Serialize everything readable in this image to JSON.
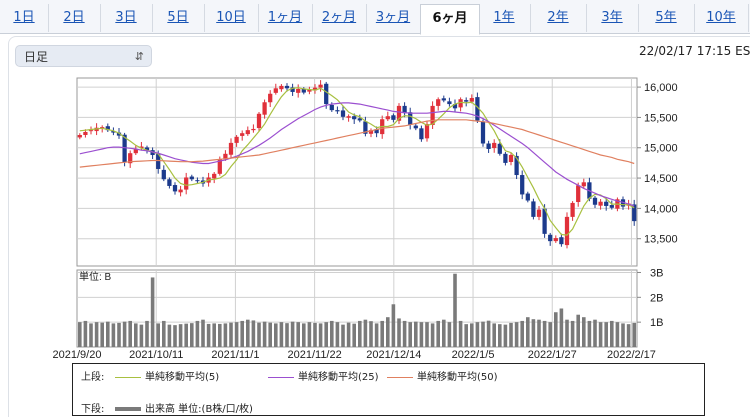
{
  "tabs": [
    {
      "label": "1日",
      "active": false
    },
    {
      "label": "2日",
      "active": false
    },
    {
      "label": "3日",
      "active": false
    },
    {
      "label": "5日",
      "active": false
    },
    {
      "label": "10日",
      "active": false
    },
    {
      "label": "1ヶ月",
      "active": false
    },
    {
      "label": "2ヶ月",
      "active": false
    },
    {
      "label": "3ヶ月",
      "active": false
    },
    {
      "label": "6ヶ月",
      "active": true
    },
    {
      "label": "1年",
      "active": false
    },
    {
      "label": "2年",
      "active": false
    },
    {
      "label": "3年",
      "active": false
    },
    {
      "label": "5年",
      "active": false
    },
    {
      "label": "10年",
      "active": false
    }
  ],
  "period_select": {
    "value": "日足"
  },
  "datetime": "22/02/17 17:15 ES",
  "legend": {
    "upper_label": "上段:",
    "lower_label": "下段:",
    "ma5": "単純移動平均(5)",
    "ma25": "単純移動平均(25)",
    "ma50": "単純移動平均(50)",
    "volume": "出来高 単位:(B株/口/枚)"
  },
  "colors": {
    "up": "#e0303a",
    "down": "#1c3a8c",
    "ma5": "#a8c040",
    "ma25": "#9b4fd0",
    "ma50": "#e08060",
    "volume": "#7a7a7a"
  },
  "chart_data": [
    {
      "type": "candlestick",
      "x_labels": [
        "2021/9/20",
        "2021/10/11",
        "2021/11/1",
        "2021/11/22",
        "2021/12/14",
        "2022/1/5",
        "2022/1/27",
        "2022/2/17"
      ],
      "y_ticks": [
        13500,
        14000,
        14500,
        15000,
        15500,
        16000
      ],
      "ylim": [
        13050,
        16150
      ],
      "close": [
        15210,
        15260,
        15290,
        15330,
        15340,
        15290,
        15250,
        15200,
        14760,
        14910,
        14980,
        15020,
        14960,
        14880,
        14650,
        14480,
        14370,
        14280,
        14310,
        14510,
        14480,
        14460,
        14410,
        14510,
        14570,
        14810,
        14900,
        15080,
        15180,
        15240,
        15290,
        15310,
        15560,
        15750,
        15890,
        15980,
        16020,
        15980,
        15920,
        15970,
        15910,
        15960,
        15990,
        16040,
        15720,
        15620,
        15600,
        15510,
        15520,
        15470,
        15450,
        15230,
        15290,
        15240,
        15470,
        15520,
        15460,
        15690,
        15570,
        15380,
        15320,
        15140,
        15390,
        15690,
        15800,
        15780,
        15720,
        15650,
        15800,
        15760,
        15820,
        15450,
        15070,
        14980,
        15080,
        14900,
        14750,
        14880,
        14550,
        14230,
        14130,
        13860,
        13980,
        13580,
        13460,
        13510,
        13410,
        13860,
        14090,
        14380,
        14430,
        14160,
        14060,
        14110,
        14040,
        14010,
        14150,
        14030,
        14080,
        13790
      ],
      "series": [
        {
          "name": "単純移動平均(5)",
          "values": [
            15280,
            15290,
            15300,
            15310,
            15320,
            15300,
            15280,
            15240,
            15170,
            15110,
            15040,
            14990,
            14960,
            14930,
            14900,
            14770,
            14640,
            14500,
            14410,
            14380,
            14390,
            14410,
            14430,
            14470,
            14480,
            14500,
            14560,
            14690,
            14800,
            14950,
            15050,
            15160,
            15270,
            15390,
            15550,
            15700,
            15840,
            15940,
            15980,
            15990,
            15970,
            15960,
            15950,
            15980,
            15920,
            15860,
            15790,
            15690,
            15590,
            15540,
            15510,
            15440,
            15390,
            15330,
            15350,
            15350,
            15380,
            15480,
            15530,
            15520,
            15480,
            15420,
            15370,
            15390,
            15470,
            15560,
            15660,
            15720,
            15750,
            15740,
            15750,
            15670,
            15570,
            15420,
            15280,
            15100,
            14950,
            14920,
            14830,
            14680,
            14510,
            14340,
            14150,
            14000,
            13800,
            13680,
            13570,
            13560,
            13660,
            13850,
            14040,
            14170,
            14230,
            14220,
            14160,
            14070,
            14070,
            14060,
            14060,
            14010
          ]
        },
        {
          "name": "単純移動平均(25)",
          "values": [
            14900,
            14920,
            14940,
            14960,
            14980,
            15000,
            15010,
            15010,
            15000,
            14990,
            14980,
            14960,
            14950,
            14930,
            14910,
            14880,
            14850,
            14820,
            14800,
            14780,
            14760,
            14750,
            14740,
            14740,
            14760,
            14780,
            14800,
            14830,
            14860,
            14900,
            14940,
            14990,
            15040,
            15100,
            15160,
            15230,
            15300,
            15360,
            15420,
            15480,
            15530,
            15580,
            15630,
            15670,
            15700,
            15720,
            15730,
            15740,
            15740,
            15730,
            15720,
            15700,
            15680,
            15660,
            15640,
            15620,
            15600,
            15590,
            15580,
            15570,
            15570,
            15570,
            15570,
            15580,
            15590,
            15600,
            15600,
            15590,
            15580,
            15570,
            15550,
            15520,
            15480,
            15430,
            15370,
            15310,
            15250,
            15190,
            15130,
            15070,
            15000,
            14920,
            14840,
            14760,
            14680,
            14600,
            14540,
            14480,
            14430,
            14380,
            14330,
            14290,
            14250,
            14210,
            14180,
            14150,
            14120,
            14100,
            14070,
            14040
          ]
        },
        {
          "name": "単純移動平均(50)",
          "values": [
            14680,
            14690,
            14700,
            14710,
            14720,
            14730,
            14740,
            14750,
            14760,
            14770,
            14775,
            14780,
            14785,
            14790,
            14790,
            14785,
            14780,
            14775,
            14770,
            14770,
            14770,
            14775,
            14780,
            14790,
            14800,
            14810,
            14820,
            14830,
            14840,
            14850,
            14860,
            14870,
            14880,
            14900,
            14920,
            14940,
            14960,
            14980,
            15000,
            15020,
            15040,
            15060,
            15080,
            15100,
            15120,
            15140,
            15160,
            15180,
            15200,
            15220,
            15240,
            15260,
            15280,
            15300,
            15320,
            15330,
            15340,
            15350,
            15360,
            15380,
            15400,
            15420,
            15440,
            15450,
            15460,
            15460,
            15460,
            15460,
            15460,
            15460,
            15450,
            15440,
            15430,
            15420,
            15400,
            15380,
            15360,
            15340,
            15320,
            15300,
            15270,
            15240,
            15210,
            15180,
            15150,
            15120,
            15090,
            15060,
            15030,
            15000,
            14970,
            14940,
            14910,
            14880,
            14860,
            14840,
            14810,
            14790,
            14770,
            14740
          ]
        }
      ]
    },
    {
      "type": "bar",
      "name": "出来高",
      "unit_label": "単位: B",
      "y_ticks": [
        {
          "value": 1,
          "label": "1B"
        },
        {
          "value": 2,
          "label": "2B"
        },
        {
          "value": 3,
          "label": "3B"
        }
      ],
      "ylim": [
        0,
        3.1
      ],
      "values": [
        1.0,
        1.05,
        0.95,
        1.0,
        0.98,
        1.02,
        0.95,
        0.97,
        1.02,
        1.05,
        0.95,
        0.9,
        1.05,
        2.8,
        0.95,
        1.05,
        0.9,
        0.88,
        0.92,
        0.94,
        0.96,
        1.05,
        1.1,
        0.93,
        0.95,
        0.93,
        0.95,
        0.98,
        1.0,
        1.05,
        1.1,
        1.07,
        0.98,
        1.02,
        0.98,
        0.95,
        1.0,
        0.96,
        1.02,
        1.0,
        0.95,
        1.0,
        0.97,
        0.95,
        1.0,
        1.05,
        1.0,
        0.9,
        0.98,
        0.94,
        1.05,
        1.1,
        1.04,
        0.95,
        1.05,
        1.2,
        1.72,
        1.15,
        1.05,
        1.0,
        1.02,
        1.0,
        1.0,
        0.95,
        1.05,
        1.1,
        1.0,
        2.95,
        1.05,
        0.92,
        0.95,
        1.0,
        1.02,
        1.06,
        0.95,
        0.92,
        0.9,
        0.97,
        1.0,
        1.05,
        1.2,
        1.12,
        1.1,
        1.05,
        1.0,
        1.4,
        1.55,
        1.1,
        1.05,
        1.3,
        1.2,
        1.05,
        1.1,
        1.0,
        1.0,
        1.05,
        1.0,
        0.95,
        0.92,
        0.97
      ]
    }
  ]
}
